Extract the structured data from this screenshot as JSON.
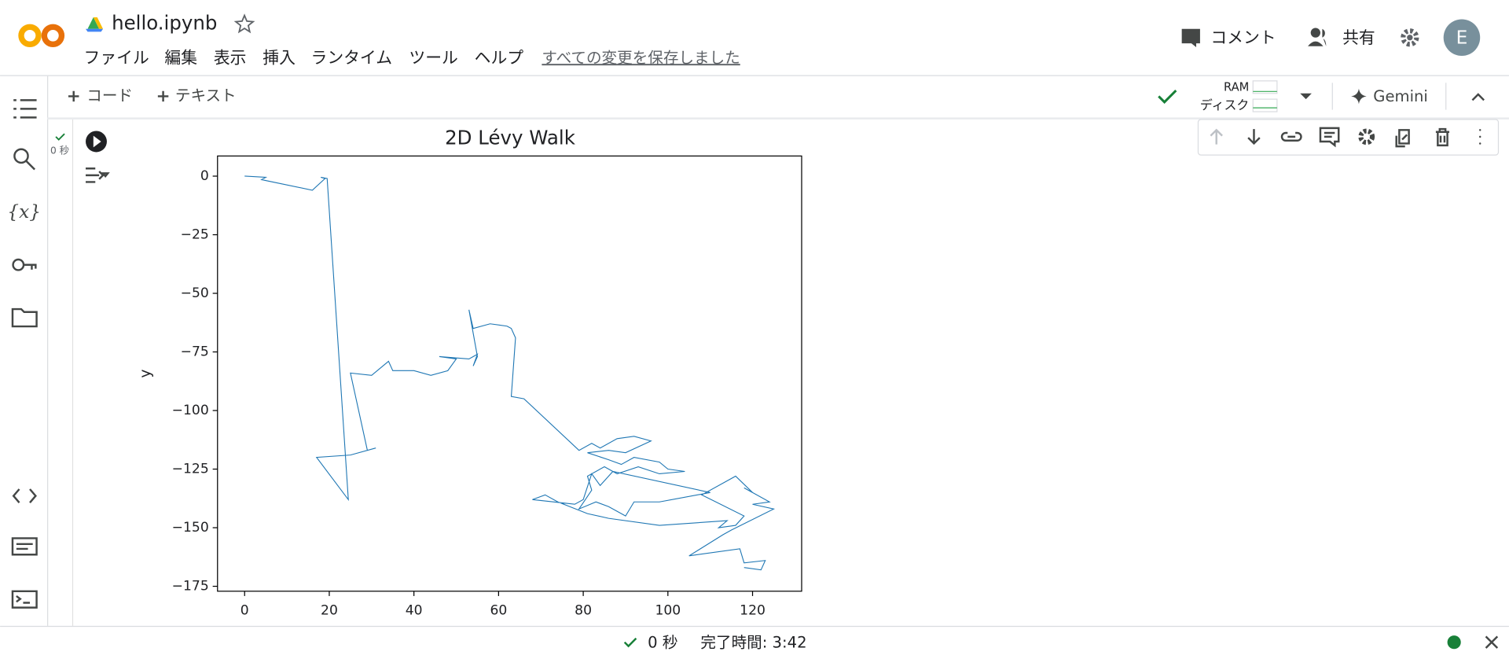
{
  "header": {
    "filename": "hello.ipynb",
    "menu": [
      "ファイル",
      "編集",
      "表示",
      "挿入",
      "ランタイム",
      "ツール",
      "ヘルプ"
    ],
    "saved": "すべての変更を保存しました",
    "comment": "コメント",
    "share": "共有",
    "avatar": "E"
  },
  "toolbar": {
    "add_code": "コード",
    "add_text": "テキスト",
    "ram": "RAM",
    "disk": "ディスク",
    "gemini": "Gemini"
  },
  "cell": {
    "exec_time": "0 秒"
  },
  "status": {
    "time": "0 秒",
    "finished": "完了時間: 3:42"
  },
  "chart_data": {
    "type": "line",
    "title": "2D Lévy Walk",
    "y_label": "y",
    "color": "#1f77b4",
    "x": [
      0,
      5,
      4,
      16,
      19,
      18,
      19.5,
      24.5,
      17,
      25,
      31,
      29,
      25,
      30,
      34,
      35,
      40,
      44,
      48,
      50,
      46,
      53,
      55,
      54,
      55,
      53,
      54,
      58,
      62,
      63,
      64,
      63,
      66,
      79,
      82,
      84,
      88,
      92,
      96,
      90,
      86,
      81,
      86,
      89,
      92,
      98,
      100,
      104,
      98,
      93,
      88,
      85,
      81,
      82,
      79,
      83,
      86,
      90,
      92,
      98,
      110,
      87,
      84,
      82,
      80,
      78,
      68,
      71,
      74,
      81,
      86,
      98,
      114,
      112,
      116,
      118,
      108,
      116,
      120,
      118,
      124,
      120,
      125,
      115,
      113,
      105,
      117,
      118,
      123,
      122,
      118
    ],
    "values": [
      0,
      -0.5,
      -1.5,
      -6,
      -1,
      -0.5,
      -1,
      -138,
      -120,
      -119,
      -116,
      -117,
      -84,
      -85,
      -79,
      -83,
      -83,
      -85,
      -83,
      -78,
      -77,
      -78,
      -76,
      -81,
      -77,
      -57,
      -65,
      -63,
      -64,
      -65,
      -69,
      -94,
      -95,
      -117,
      -114,
      -116,
      -112,
      -111,
      -113,
      -118,
      -117,
      -118,
      -121,
      -123,
      -120,
      -122,
      -125,
      -126,
      -127,
      -124,
      -127,
      -124,
      -128,
      -134,
      -142,
      -139,
      -141,
      -145,
      -139,
      -139,
      -135,
      -126,
      -132,
      -127,
      -138,
      -140,
      -138,
      -136,
      -139,
      -144,
      -146,
      -149,
      -147,
      -150,
      -149,
      -145,
      -136,
      -128,
      -135,
      -133,
      -139,
      -140,
      -142,
      -151,
      -153,
      -162,
      -159,
      -165,
      -164,
      -168,
      -167
    ],
    "xlim": [
      -6.4,
      131.6
    ],
    "ylim": [
      -177.1,
      8.6
    ],
    "xticks": [
      0,
      20,
      40,
      60,
      80,
      100,
      120
    ],
    "yticks": [
      0,
      {
        "value": -25,
        "label": "−25"
      },
      {
        "value": -50,
        "label": "−50"
      },
      {
        "value": -75,
        "label": "−75"
      },
      {
        "value": -100,
        "label": "−100"
      },
      {
        "value": -125,
        "label": "−125"
      },
      {
        "value": -150,
        "label": "−150"
      },
      {
        "value": -175,
        "label": "−175"
      }
    ]
  }
}
